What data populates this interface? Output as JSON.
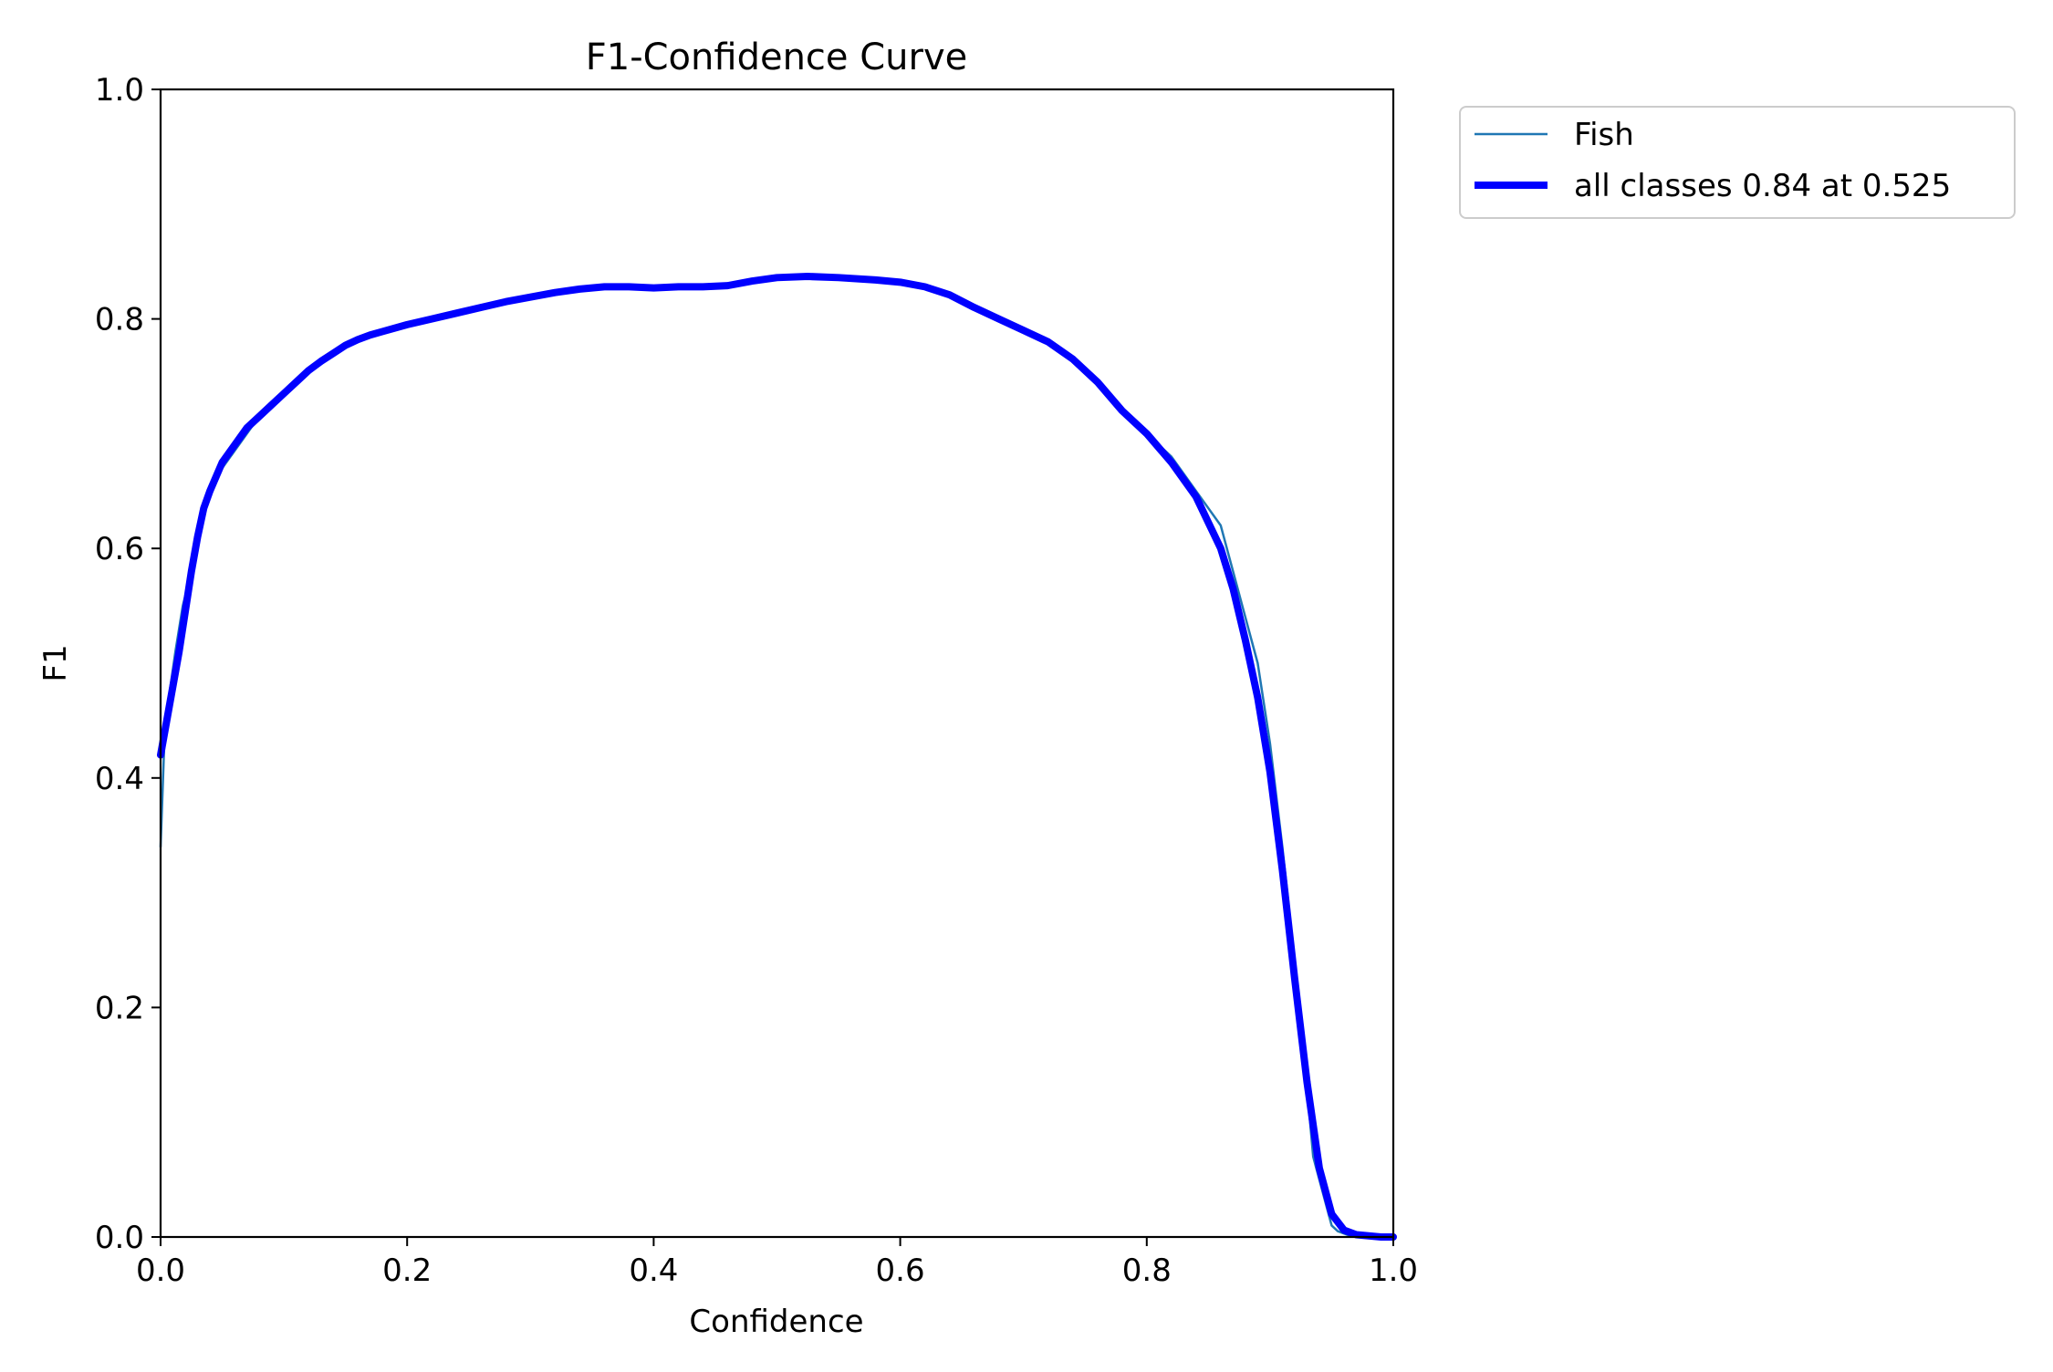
{
  "chart_data": {
    "type": "line",
    "title": "F1-Confidence Curve",
    "xlabel": "Confidence",
    "ylabel": "F1",
    "xlim": [
      0,
      1
    ],
    "ylim": [
      0,
      1
    ],
    "xticks": [
      0.0,
      0.2,
      0.4,
      0.6,
      0.8,
      1.0
    ],
    "yticks": [
      0.0,
      0.2,
      0.4,
      0.6,
      0.8,
      1.0
    ],
    "xtick_labels": [
      "0.0",
      "0.2",
      "0.4",
      "0.6",
      "0.8",
      "1.0"
    ],
    "ytick_labels": [
      "0.0",
      "0.2",
      "0.4",
      "0.6",
      "0.8",
      "1.0"
    ],
    "grid": false,
    "legend_position": "outside-top-right",
    "series": [
      {
        "name": "Fish",
        "color": "#1f77b4",
        "line_style": "thin",
        "x": [
          0.0,
          0.003,
          0.008,
          0.012,
          0.018,
          0.025,
          0.032,
          0.04,
          0.05,
          0.06,
          0.07,
          0.08,
          0.1,
          0.12,
          0.14,
          0.16,
          0.18,
          0.2,
          0.22,
          0.24,
          0.26,
          0.28,
          0.3,
          0.32,
          0.34,
          0.36,
          0.38,
          0.4,
          0.42,
          0.44,
          0.46,
          0.48,
          0.5,
          0.52,
          0.54,
          0.56,
          0.58,
          0.6,
          0.62,
          0.64,
          0.66,
          0.68,
          0.7,
          0.72,
          0.74,
          0.76,
          0.78,
          0.8,
          0.82,
          0.84,
          0.86,
          0.87,
          0.88,
          0.89,
          0.9,
          0.91,
          0.92,
          0.93,
          0.935,
          0.94,
          0.945,
          0.95,
          0.955,
          0.96,
          0.965,
          0.97,
          0.975,
          1.0
        ],
        "y": [
          0.34,
          0.43,
          0.48,
          0.51,
          0.55,
          0.58,
          0.62,
          0.645,
          0.67,
          0.685,
          0.7,
          0.715,
          0.735,
          0.755,
          0.77,
          0.783,
          0.79,
          0.795,
          0.8,
          0.806,
          0.811,
          0.815,
          0.819,
          0.822,
          0.826,
          0.828,
          0.828,
          0.827,
          0.828,
          0.829,
          0.83,
          0.833,
          0.836,
          0.837,
          0.836,
          0.835,
          0.834,
          0.831,
          0.827,
          0.82,
          0.81,
          0.8,
          0.79,
          0.78,
          0.765,
          0.745,
          0.72,
          0.7,
          0.68,
          0.65,
          0.62,
          0.58,
          0.54,
          0.5,
          0.43,
          0.34,
          0.24,
          0.13,
          0.07,
          0.05,
          0.03,
          0.01,
          0.005,
          0.003,
          0.001,
          0.0,
          0.0,
          0.0
        ]
      },
      {
        "name": "all classes 0.84 at 0.525",
        "color": "#0000ff",
        "line_style": "thick",
        "x": [
          0.0,
          0.005,
          0.01,
          0.015,
          0.02,
          0.025,
          0.03,
          0.035,
          0.04,
          0.05,
          0.06,
          0.07,
          0.08,
          0.09,
          0.1,
          0.11,
          0.12,
          0.13,
          0.14,
          0.15,
          0.16,
          0.17,
          0.18,
          0.2,
          0.22,
          0.24,
          0.26,
          0.28,
          0.3,
          0.32,
          0.34,
          0.36,
          0.38,
          0.4,
          0.42,
          0.44,
          0.46,
          0.48,
          0.5,
          0.525,
          0.55,
          0.58,
          0.6,
          0.62,
          0.64,
          0.66,
          0.68,
          0.7,
          0.72,
          0.74,
          0.76,
          0.78,
          0.8,
          0.82,
          0.84,
          0.86,
          0.87,
          0.88,
          0.89,
          0.9,
          0.91,
          0.92,
          0.93,
          0.94,
          0.95,
          0.96,
          0.97,
          0.98,
          0.99,
          1.0
        ],
        "y": [
          0.42,
          0.45,
          0.48,
          0.51,
          0.545,
          0.58,
          0.61,
          0.635,
          0.65,
          0.675,
          0.69,
          0.705,
          0.715,
          0.725,
          0.735,
          0.745,
          0.755,
          0.763,
          0.77,
          0.777,
          0.782,
          0.786,
          0.789,
          0.795,
          0.8,
          0.805,
          0.81,
          0.815,
          0.819,
          0.823,
          0.826,
          0.828,
          0.828,
          0.827,
          0.828,
          0.828,
          0.829,
          0.833,
          0.836,
          0.837,
          0.836,
          0.834,
          0.832,
          0.828,
          0.821,
          0.81,
          0.8,
          0.79,
          0.78,
          0.765,
          0.745,
          0.72,
          0.7,
          0.675,
          0.645,
          0.6,
          0.565,
          0.52,
          0.47,
          0.405,
          0.32,
          0.225,
          0.135,
          0.06,
          0.02,
          0.006,
          0.002,
          0.001,
          0.0,
          0.0
        ]
      }
    ]
  }
}
